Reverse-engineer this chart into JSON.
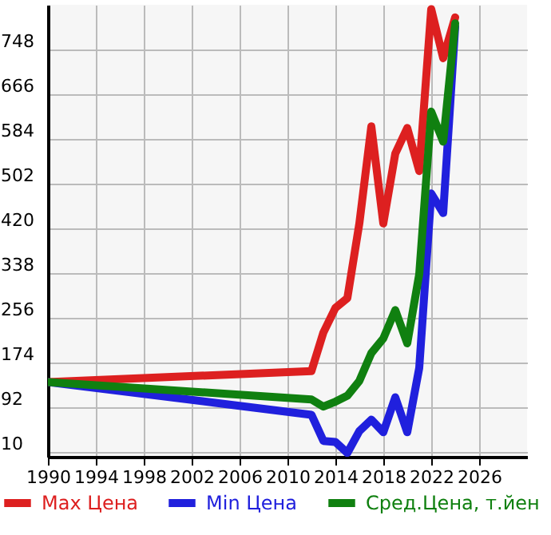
{
  "chart_data": {
    "type": "line",
    "x": [
      1990,
      2012,
      2013,
      2014,
      2015,
      2016,
      2017,
      2018,
      2019,
      2020,
      2021,
      2022,
      2023,
      2024
    ],
    "series": [
      {
        "name": "Max Цена",
        "color": "#dd2020",
        "values": [
          138,
          158,
          229,
          274,
          292,
          429,
          607,
          429,
          557,
          604,
          525,
          822,
          732,
          807
        ]
      },
      {
        "name": "Min Цена",
        "color": "#2020dd",
        "values": [
          138,
          78,
          30,
          28,
          8,
          48,
          69,
          46,
          110,
          46,
          164,
          484,
          448,
          790
        ]
      },
      {
        "name": "Сред.Цена, т.йен",
        "color": "#108010",
        "values": [
          138,
          106,
          93,
          102,
          113,
          140,
          191,
          218,
          270,
          209,
          336,
          634,
          579,
          796
        ]
      }
    ],
    "xlim": [
      1990,
      2030
    ],
    "xticks": [
      1990,
      1994,
      1998,
      2002,
      2006,
      2010,
      2014,
      2018,
      2022,
      2026
    ],
    "ylim": [
      1,
      830
    ],
    "yticks": [
      10,
      92,
      174,
      256,
      338,
      420,
      502,
      584,
      666,
      748
    ],
    "grid": true,
    "legend": "bottom",
    "marker": "none",
    "line_style": "solid"
  }
}
